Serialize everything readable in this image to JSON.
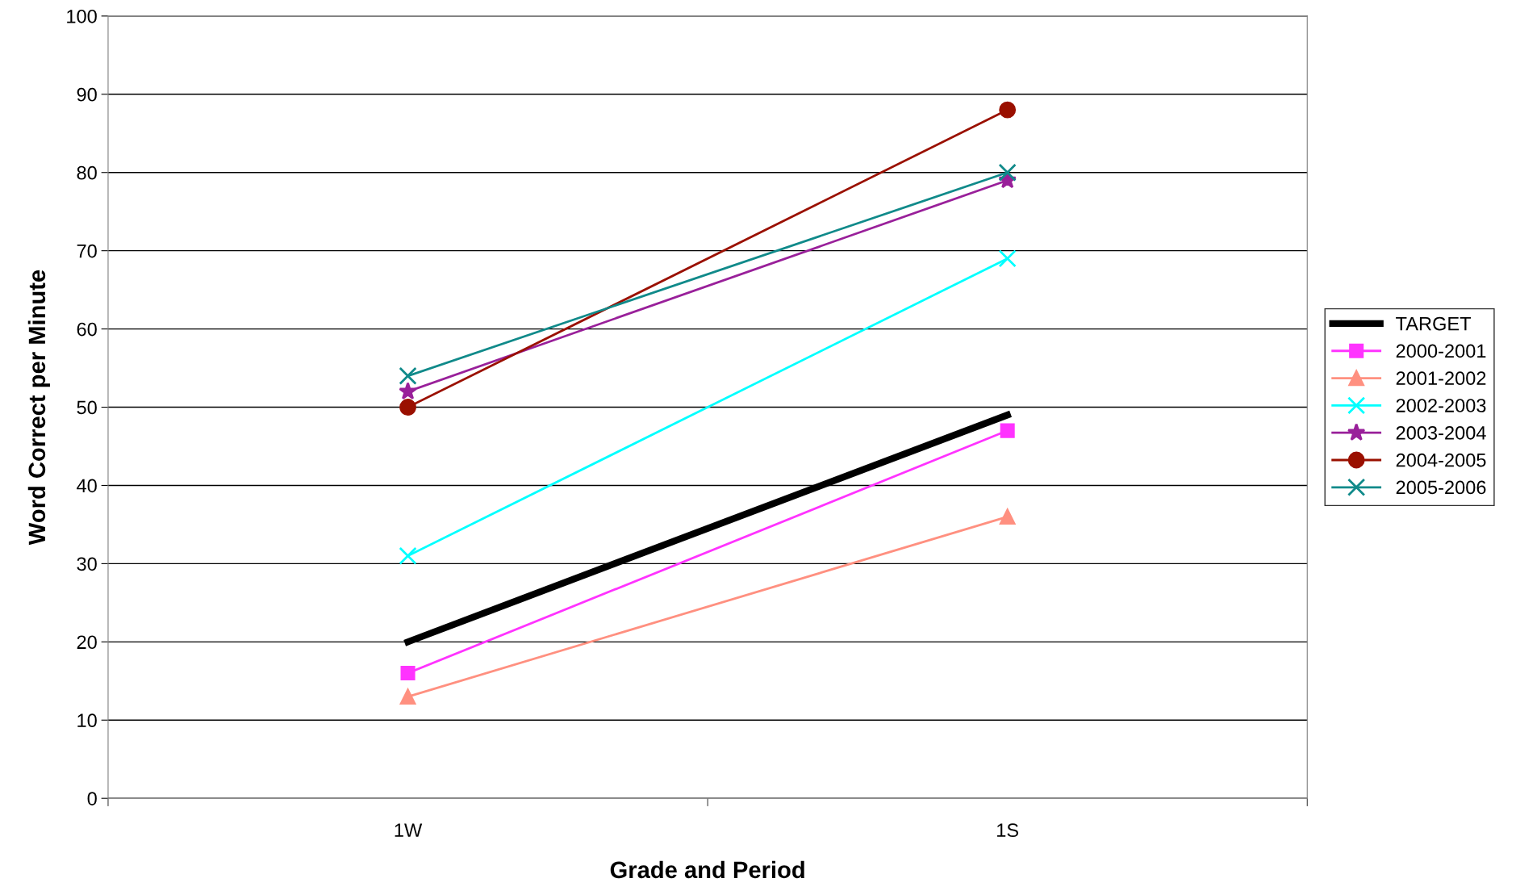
{
  "chart_data": {
    "type": "line",
    "xlabel": "Grade and Period",
    "ylabel": "Word Correct per Minute",
    "categories": [
      "1W",
      "1S"
    ],
    "ylim": [
      0,
      100
    ],
    "yticks": [
      0,
      10,
      20,
      30,
      40,
      50,
      60,
      70,
      80,
      90,
      100
    ],
    "grid": "y",
    "legend": "right",
    "series": [
      {
        "name": "TARGET",
        "color": "#000000",
        "values": [
          20,
          49
        ],
        "marker": "none"
      },
      {
        "name": "2000-2001",
        "color": "#ff33ff",
        "values": [
          16,
          47
        ],
        "marker": "square"
      },
      {
        "name": "2001-2002",
        "color": "#ff9080",
        "values": [
          13,
          36
        ],
        "marker": "triangle"
      },
      {
        "name": "2002-2003",
        "color": "#00ffff",
        "values": [
          31,
          69
        ],
        "marker": "cross"
      },
      {
        "name": "2003-2004",
        "color": "#99209a",
        "values": [
          52,
          79
        ],
        "marker": "star"
      },
      {
        "name": "2004-2005",
        "color": "#9a1000",
        "values": [
          50,
          88
        ],
        "marker": "circle"
      },
      {
        "name": "2005-2006",
        "color": "#108a8a",
        "values": [
          54,
          80
        ],
        "marker": "cross"
      }
    ]
  }
}
